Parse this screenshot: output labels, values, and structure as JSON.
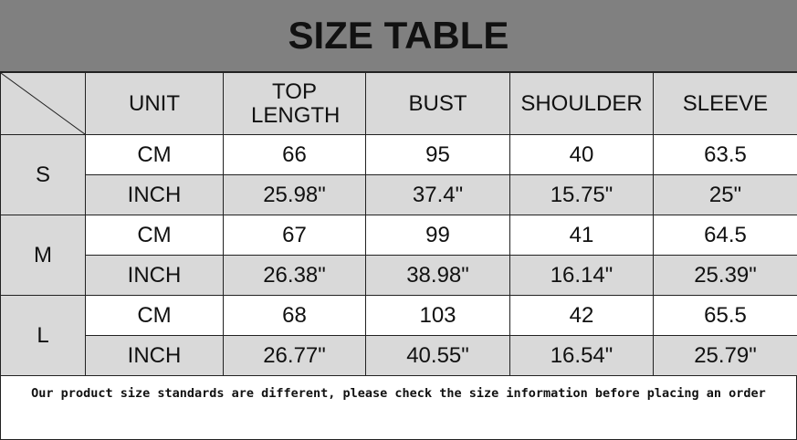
{
  "title": "SIZE TABLE",
  "headers": [
    "UNIT",
    "TOP LENGTH",
    "BUST",
    "SHOULDER",
    "SLEEVE"
  ],
  "rows": [
    {
      "size": "S",
      "cm": [
        "CM",
        "66",
        "95",
        "40",
        "63.5"
      ],
      "inch": [
        "INCH",
        "25.98\"",
        "37.4\"",
        "15.75\"",
        "25\""
      ]
    },
    {
      "size": "M",
      "cm": [
        "CM",
        "67",
        "99",
        "41",
        "64.5"
      ],
      "inch": [
        "INCH",
        "26.38\"",
        "38.98\"",
        "16.14\"",
        "25.39\""
      ]
    },
    {
      "size": "L",
      "cm": [
        "CM",
        "68",
        "103",
        "42",
        "65.5"
      ],
      "inch": [
        "INCH",
        "26.77\"",
        "40.55\"",
        "16.54\"",
        "25.79\""
      ]
    }
  ],
  "note": "Our product size standards are different, please check the size information before placing an order",
  "colors": {
    "title_bg": "#808080",
    "header_bg": "#d9d9d9",
    "border": "#222222"
  }
}
